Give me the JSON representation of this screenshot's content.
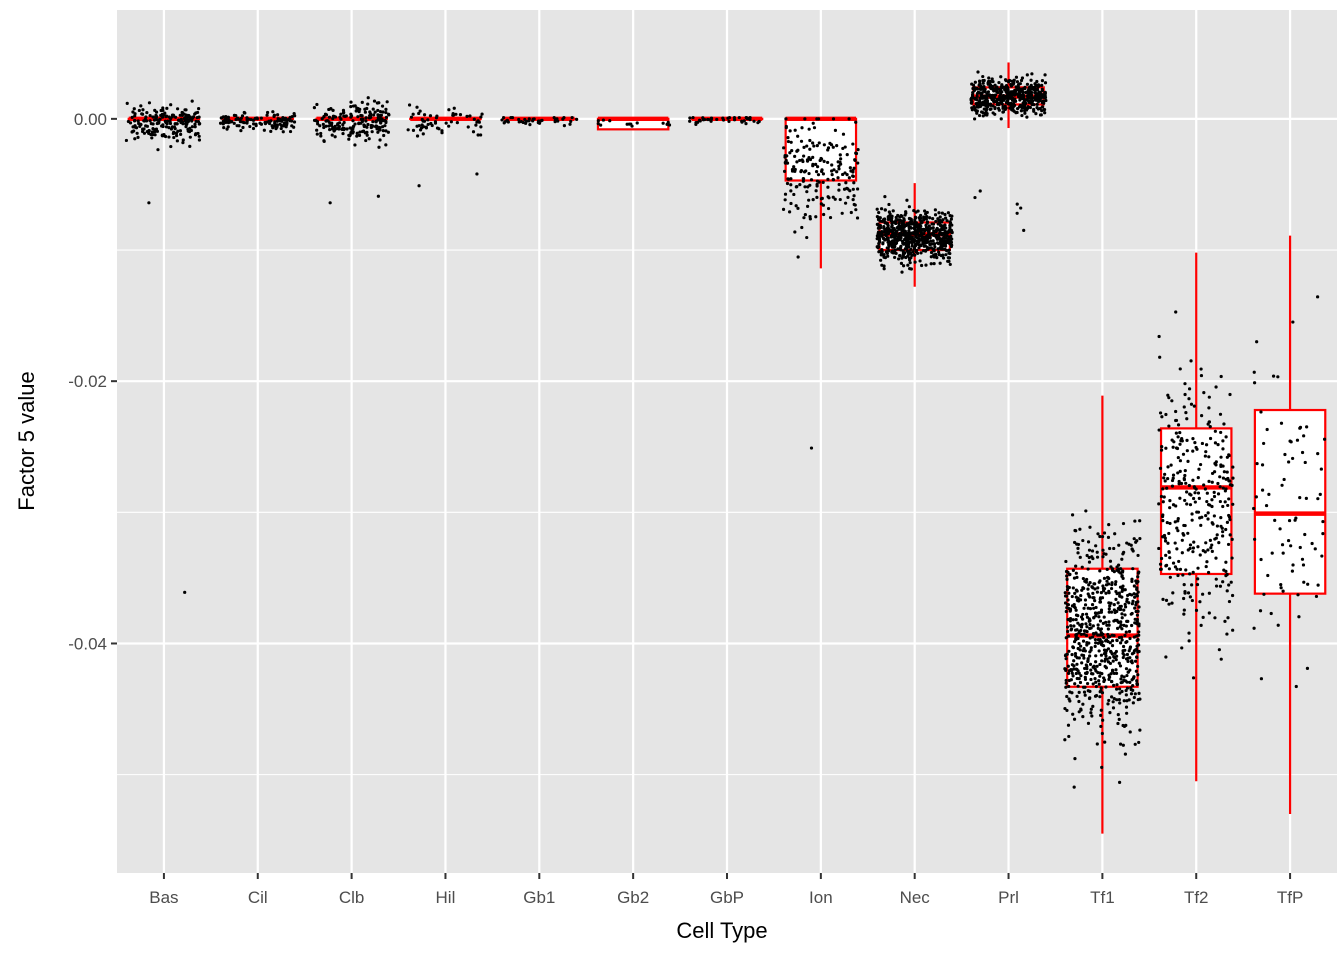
{
  "chart_data": {
    "type": "boxplot",
    "xlabel": "Cell Type",
    "ylabel": "Factor 5 value",
    "ylim": [
      -0.0575,
      0.0083
    ],
    "y_ticks": [
      0.0,
      -0.02,
      -0.04
    ],
    "y_tick_labels": [
      "0.00",
      "-0.02",
      "-0.04"
    ],
    "grid": true,
    "colors": {
      "panel_bg": "#e5e5e5",
      "grid": "#ffffff",
      "box": "#ff0000",
      "points": "#000000",
      "tick_text": "#4d4d4d",
      "axis_title": "#000000"
    },
    "categories": [
      "Bas",
      "Cil",
      "Clb",
      "Hil",
      "Gb1",
      "Gb2",
      "GbP",
      "Ion",
      "Nec",
      "Prl",
      "Tf1",
      "Tf2",
      "TfP"
    ],
    "boxes": [
      {
        "q1": 0.0,
        "median": 0.0,
        "q3": 0.0,
        "whisker_low": 0.0,
        "whisker_high": 0.0
      },
      {
        "q1": 0.0,
        "median": 0.0,
        "q3": 0.0,
        "whisker_low": 0.0,
        "whisker_high": 0.0
      },
      {
        "q1": 0.0,
        "median": 0.0,
        "q3": 0.0,
        "whisker_low": 0.0,
        "whisker_high": 0.0
      },
      {
        "q1": 0.0,
        "median": 0.0,
        "q3": 0.0,
        "whisker_low": 0.0,
        "whisker_high": 0.0
      },
      {
        "q1": 0.0,
        "median": 0.0,
        "q3": 0.0,
        "whisker_low": 0.0,
        "whisker_high": 0.0
      },
      {
        "q1": -0.0008,
        "median": 0.0,
        "q3": 0.0,
        "whisker_low": -0.0008,
        "whisker_high": 0.0
      },
      {
        "q1": 0.0,
        "median": 0.0,
        "q3": 0.0,
        "whisker_low": 0.0,
        "whisker_high": 0.0
      },
      {
        "q1": -0.0047,
        "median": 0.0,
        "q3": 0.0,
        "whisker_low": -0.0114,
        "whisker_high": 0.0
      },
      {
        "q1": -0.01,
        "median": -0.0088,
        "q3": -0.0079,
        "whisker_low": -0.0128,
        "whisker_high": -0.0049
      },
      {
        "q1": 0.0011,
        "median": 0.0017,
        "q3": 0.0024,
        "whisker_low": -0.0007,
        "whisker_high": 0.0043
      },
      {
        "q1": -0.0433,
        "median": -0.0394,
        "q3": -0.0343,
        "whisker_low": -0.0545,
        "whisker_high": -0.0211
      },
      {
        "q1": -0.0347,
        "median": -0.0281,
        "q3": -0.0236,
        "whisker_low": -0.0505,
        "whisker_high": -0.0102
      },
      {
        "q1": -0.0362,
        "median": -0.0301,
        "q3": -0.0222,
        "whisker_low": -0.053,
        "whisker_high": -0.0089
      }
    ],
    "point_clouds": [
      {
        "n": 200,
        "center": -0.0003,
        "spread": 0.0012,
        "lo": -0.0042,
        "hi": 0.0021,
        "outliers": [
          -0.0361,
          -0.0064
        ]
      },
      {
        "n": 120,
        "center": -0.0002,
        "spread": 0.0006,
        "lo": -0.002,
        "hi": 0.002,
        "outliers": []
      },
      {
        "n": 200,
        "center": -0.0003,
        "spread": 0.0013,
        "lo": -0.0045,
        "hi": 0.0031,
        "outliers": [
          -0.0064,
          -0.0059
        ]
      },
      {
        "n": 60,
        "center": -0.0002,
        "spread": 0.0009,
        "lo": -0.0028,
        "hi": 0.0018,
        "outliers": [
          -0.0051,
          -0.0042
        ]
      },
      {
        "n": 40,
        "center": -0.0001,
        "spread": 0.0003,
        "lo": -0.0015,
        "hi": 0.0001,
        "outliers": []
      },
      {
        "n": 14,
        "center": -0.0003,
        "spread": 0.0003,
        "lo": -0.0011,
        "hi": 0.0001,
        "outliers": []
      },
      {
        "n": 40,
        "center": -0.0001,
        "spread": 0.0004,
        "lo": -0.0014,
        "hi": 0.0001,
        "outliers": []
      },
      {
        "n": 200,
        "center": -0.004,
        "spread": 0.0035,
        "lo": -0.0113,
        "hi": 0.0,
        "outliers": [
          -0.0251
        ]
      },
      {
        "n": 700,
        "center": -0.0089,
        "spread": 0.0016,
        "lo": -0.0145,
        "hi": -0.0044,
        "outliers": []
      },
      {
        "n": 500,
        "center": 0.0017,
        "spread": 0.0011,
        "lo": -0.0011,
        "hi": 0.0054,
        "outliers": [
          -0.0085,
          -0.0072,
          -0.0068,
          -0.0065,
          -0.006,
          -0.0055
        ]
      },
      {
        "n": 700,
        "center": -0.039,
        "spread": 0.0065,
        "lo": -0.0545,
        "hi": -0.0132,
        "outliers": []
      },
      {
        "n": 330,
        "center": -0.0292,
        "spread": 0.0085,
        "lo": -0.0513,
        "hi": -0.0101,
        "outliers": []
      },
      {
        "n": 80,
        "center": -0.0295,
        "spread": 0.0105,
        "lo": -0.0535,
        "hi": -0.0089,
        "outliers": []
      }
    ]
  }
}
